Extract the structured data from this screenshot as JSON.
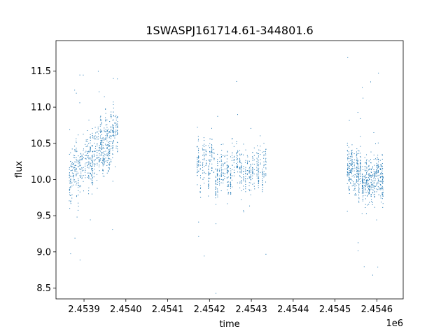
{
  "chart_data": {
    "type": "scatter",
    "title": "1SWASPJ161714.61-344801.6",
    "xlabel": "time",
    "ylabel": "flux",
    "x_offset_label": "1e6",
    "xlim": [
      2453833,
      2454663
    ],
    "ylim": [
      8.35,
      11.92
    ],
    "x_ticks": [
      2453900,
      2454000,
      2454100,
      2454200,
      2454300,
      2454400,
      2454500,
      2454600
    ],
    "x_tick_labels": [
      "2.4539",
      "2.4540",
      "2.4541",
      "2.4542",
      "2.4543",
      "2.4544",
      "2.4545",
      "2.4546"
    ],
    "y_ticks": [
      8.5,
      9.0,
      9.5,
      10.0,
      10.5,
      11.0,
      11.5
    ],
    "y_tick_labels": [
      "8.5",
      "9.0",
      "9.5",
      "10.0",
      "10.5",
      "11.0",
      "11.5"
    ],
    "grid": false,
    "marker_color": "#1f77b4",
    "observing_seasons": [
      {
        "x_range": [
          2453865,
          2453980
        ],
        "flux_center": 10.0,
        "flux_trend_end": 10.7,
        "flux_spread": 0.3
      },
      {
        "x_range": [
          2454170,
          2454335
        ],
        "flux_center": 10.15,
        "flux_trend_end": 10.15,
        "flux_spread": 0.25
      },
      {
        "x_range": [
          2454530,
          2454615
        ],
        "flux_center": 10.1,
        "flux_trend_end": 10.05,
        "flux_spread": 0.25
      }
    ]
  }
}
